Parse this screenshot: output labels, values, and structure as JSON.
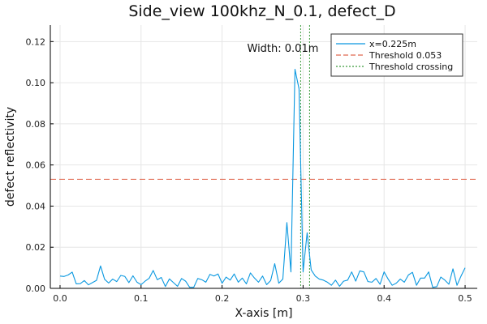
{
  "chart_data": {
    "type": "line",
    "title": "Side_view 100khz_N_0.1, defect_D",
    "xlabel": "X-axis [m]",
    "ylabel": "defect reflectivity",
    "xlim": [
      -0.012,
      0.515
    ],
    "ylim": [
      0.0,
      0.128
    ],
    "x_ticks": [
      0.0,
      0.1,
      0.2,
      0.3,
      0.4,
      0.5
    ],
    "x_tick_labels": [
      "0.0",
      "0.1",
      "0.2",
      "0.3",
      "0.4",
      "0.5"
    ],
    "y_ticks": [
      0.0,
      0.02,
      0.04,
      0.06,
      0.08,
      0.1,
      0.12
    ],
    "y_tick_labels": [
      "0.00",
      "0.02",
      "0.04",
      "0.06",
      "0.08",
      "0.10",
      "0.12"
    ],
    "grid": true,
    "legend_position": "top-right",
    "series": [
      {
        "name": "x=0.225m",
        "color": "#0a98e0",
        "x": [
          0.0,
          0.005,
          0.01,
          0.015,
          0.02,
          0.025,
          0.03,
          0.035,
          0.04,
          0.045,
          0.05,
          0.055,
          0.06,
          0.065,
          0.07,
          0.075,
          0.08,
          0.085,
          0.09,
          0.095,
          0.1,
          0.105,
          0.11,
          0.115,
          0.12,
          0.125,
          0.13,
          0.135,
          0.14,
          0.145,
          0.15,
          0.155,
          0.16,
          0.165,
          0.17,
          0.175,
          0.18,
          0.185,
          0.19,
          0.195,
          0.2,
          0.205,
          0.21,
          0.215,
          0.22,
          0.225,
          0.23,
          0.235,
          0.24,
          0.245,
          0.25,
          0.255,
          0.26,
          0.265,
          0.27,
          0.275,
          0.28,
          0.285,
          0.29,
          0.295,
          0.3,
          0.305,
          0.31,
          0.315,
          0.32,
          0.325,
          0.33,
          0.335,
          0.34,
          0.345,
          0.35,
          0.355,
          0.36,
          0.365,
          0.37,
          0.375,
          0.38,
          0.385,
          0.39,
          0.395,
          0.4,
          0.405,
          0.41,
          0.415,
          0.42,
          0.425,
          0.43,
          0.435,
          0.44,
          0.445,
          0.45,
          0.455,
          0.46,
          0.465,
          0.47,
          0.475,
          0.48,
          0.485,
          0.49,
          0.495,
          0.5
        ],
        "y": [
          0.006,
          0.0058,
          0.0065,
          0.0079,
          0.0022,
          0.0023,
          0.0038,
          0.0017,
          0.0028,
          0.0039,
          0.0109,
          0.0044,
          0.0026,
          0.0045,
          0.0033,
          0.0063,
          0.0058,
          0.0028,
          0.0061,
          0.003,
          0.0018,
          0.0035,
          0.0049,
          0.0087,
          0.0042,
          0.0053,
          0.0009,
          0.0046,
          0.0028,
          0.001,
          0.0048,
          0.0035,
          0.0005,
          0.0005,
          0.0048,
          0.0042,
          0.003,
          0.0068,
          0.006,
          0.007,
          0.0025,
          0.0055,
          0.004,
          0.007,
          0.003,
          0.005,
          0.0022,
          0.0075,
          0.005,
          0.003,
          0.006,
          0.0018,
          0.0038,
          0.012,
          0.0025,
          0.0045,
          0.032,
          0.008,
          0.1065,
          0.097,
          0.008,
          0.027,
          0.009,
          0.006,
          0.0045,
          0.004,
          0.003,
          0.0015,
          0.004,
          0.001,
          0.0035,
          0.004,
          0.008,
          0.0035,
          0.0085,
          0.008,
          0.0033,
          0.003,
          0.0048,
          0.002,
          0.008,
          0.0045,
          0.0015,
          0.0025,
          0.0045,
          0.003,
          0.0065,
          0.0078,
          0.0015,
          0.005,
          0.005,
          0.008,
          0.0005,
          0.0008,
          0.0055,
          0.004,
          0.002,
          0.0095,
          0.0015,
          0.006,
          0.01
        ]
      }
    ],
    "threshold": {
      "name": "Threshold 0.053",
      "value": 0.053,
      "color": "#e0674f"
    },
    "crossings": {
      "name": "Threshold crossing",
      "x": [
        0.297,
        0.308
      ],
      "color": "#3a9a3a"
    },
    "annotation": {
      "text": "Width: 0.01m",
      "x": 0.275,
      "y": 0.1165
    }
  }
}
